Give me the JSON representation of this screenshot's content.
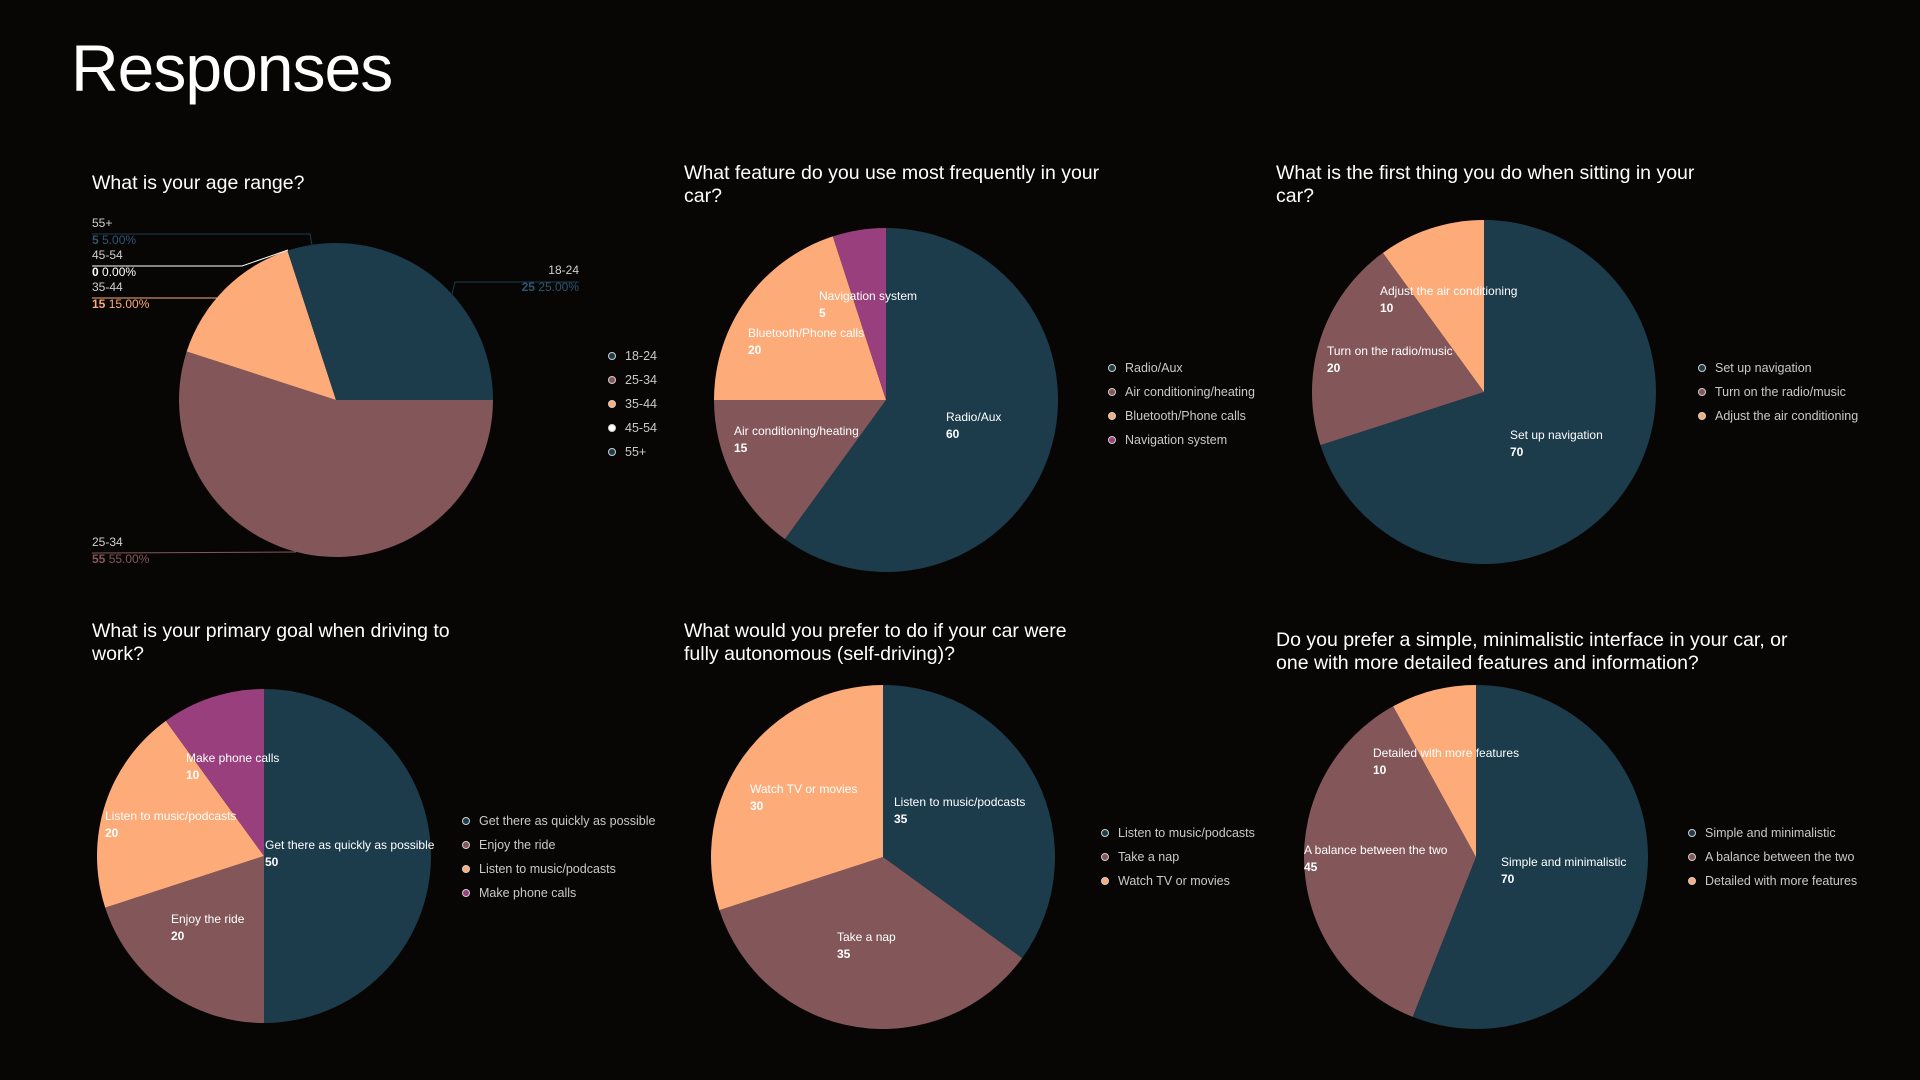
{
  "page": {
    "title": "Responses"
  },
  "colors": {
    "background": "#080605",
    "navy": "#1c3b4b",
    "mauve": "#83575a",
    "peach": "#fdac79",
    "plum": "#9a3f7e",
    "text": "#ffffff"
  },
  "chart_data": [
    {
      "type": "pie",
      "title": "What is your age range?",
      "label_style": "callout",
      "categories": [
        "18-24",
        "25-34",
        "35-44",
        "45-54",
        "55+"
      ],
      "values": [
        25,
        55,
        15,
        0,
        5
      ],
      "percentages": [
        "25.00%",
        "55.00%",
        "15.00%",
        "0.00%",
        "5.00%"
      ],
      "colors": [
        "#1c3b4b",
        "#83575a",
        "#fdac79",
        "#ffffff",
        "#1c3b4b"
      ],
      "legend": [
        "18-24",
        "25-34",
        "35-44",
        "45-54",
        "55+"
      ],
      "legend_position": "right"
    },
    {
      "type": "pie",
      "title": "What feature do you use most frequently in your car?",
      "label_style": "inside",
      "categories": [
        "Radio/Aux",
        "Air conditioning/heating",
        "Bluetooth/Phone calls",
        "Navigation system"
      ],
      "values": [
        60,
        15,
        20,
        5
      ],
      "colors": [
        "#1c3b4b",
        "#83575a",
        "#fdac79",
        "#9a3f7e"
      ],
      "legend": [
        "Radio/Aux",
        "Air conditioning/heating",
        "Bluetooth/Phone calls",
        "Navigation system"
      ],
      "legend_position": "right"
    },
    {
      "type": "pie",
      "title": "What is the first thing you do when sitting in your car?",
      "label_style": "inside",
      "categories": [
        "Set up navigation",
        "Turn on the radio/music",
        "Adjust the air conditioning"
      ],
      "values": [
        70,
        20,
        10
      ],
      "colors": [
        "#1c3b4b",
        "#83575a",
        "#fdac79"
      ],
      "legend": [
        "Set up navigation",
        "Turn on the radio/music",
        "Adjust the air conditioning"
      ],
      "legend_position": "right"
    },
    {
      "type": "pie",
      "title": "What is your primary goal when driving to work?",
      "label_style": "inside",
      "categories": [
        "Get there as quickly as possible",
        "Enjoy the ride",
        "Listen to music/podcasts",
        "Make phone calls"
      ],
      "values": [
        50,
        20,
        20,
        10
      ],
      "colors": [
        "#1c3b4b",
        "#83575a",
        "#fdac79",
        "#9a3f7e"
      ],
      "legend": [
        "Get there as quickly as possible",
        "Enjoy the ride",
        "Listen to music/podcasts",
        "Make phone calls"
      ],
      "legend_position": "right"
    },
    {
      "type": "pie",
      "title": "What would you prefer to do if your car were fully autonomous (self-driving)?",
      "label_style": "inside",
      "categories": [
        "Listen to music/podcasts",
        "Take a nap",
        "Watch TV or movies"
      ],
      "values": [
        35,
        35,
        30
      ],
      "colors": [
        "#1c3b4b",
        "#83575a",
        "#fdac79"
      ],
      "legend": [
        "Listen to music/podcasts",
        "Take a nap",
        "Watch TV or movies"
      ],
      "legend_position": "right"
    },
    {
      "type": "pie",
      "title": "Do you prefer a simple, minimalistic interface in your car, or one with more detailed features and information?",
      "label_style": "inside",
      "categories": [
        "Simple and minimalistic",
        "A balance between the two",
        "Detailed with more features"
      ],
      "values": [
        70,
        45,
        10
      ],
      "colors": [
        "#1c3b4b",
        "#83575a",
        "#fdac79"
      ],
      "legend": [
        "Simple and minimalistic",
        "A balance between the two",
        "Detailed with more features"
      ],
      "legend_position": "right"
    }
  ]
}
